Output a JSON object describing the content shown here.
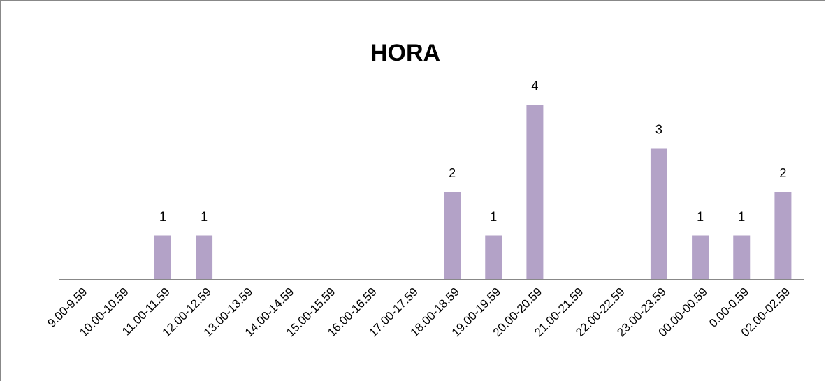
{
  "chart_data": {
    "type": "bar",
    "title": "HORA",
    "categories": [
      "9.00-9.59",
      "10.00-10.59",
      "11.00-11.59",
      "12.00-12.59",
      "13.00-13.59",
      "14.00-14.59",
      "15.00-15.59",
      "16.00-16.59",
      "17.00-17.59",
      "18.00-18.59",
      "19.00-19.59",
      "20.00-20.59",
      "21.00-21.59",
      "22.00-22.59",
      "23.00-23.59",
      "00.00-00.59",
      "0.00-0.59",
      "02.00-02.59"
    ],
    "values": [
      null,
      null,
      1,
      1,
      null,
      null,
      null,
      null,
      null,
      2,
      1,
      4,
      null,
      null,
      3,
      1,
      1,
      2
    ],
    "color": "#b3a2c7",
    "ylim": [
      0,
      5
    ]
  }
}
